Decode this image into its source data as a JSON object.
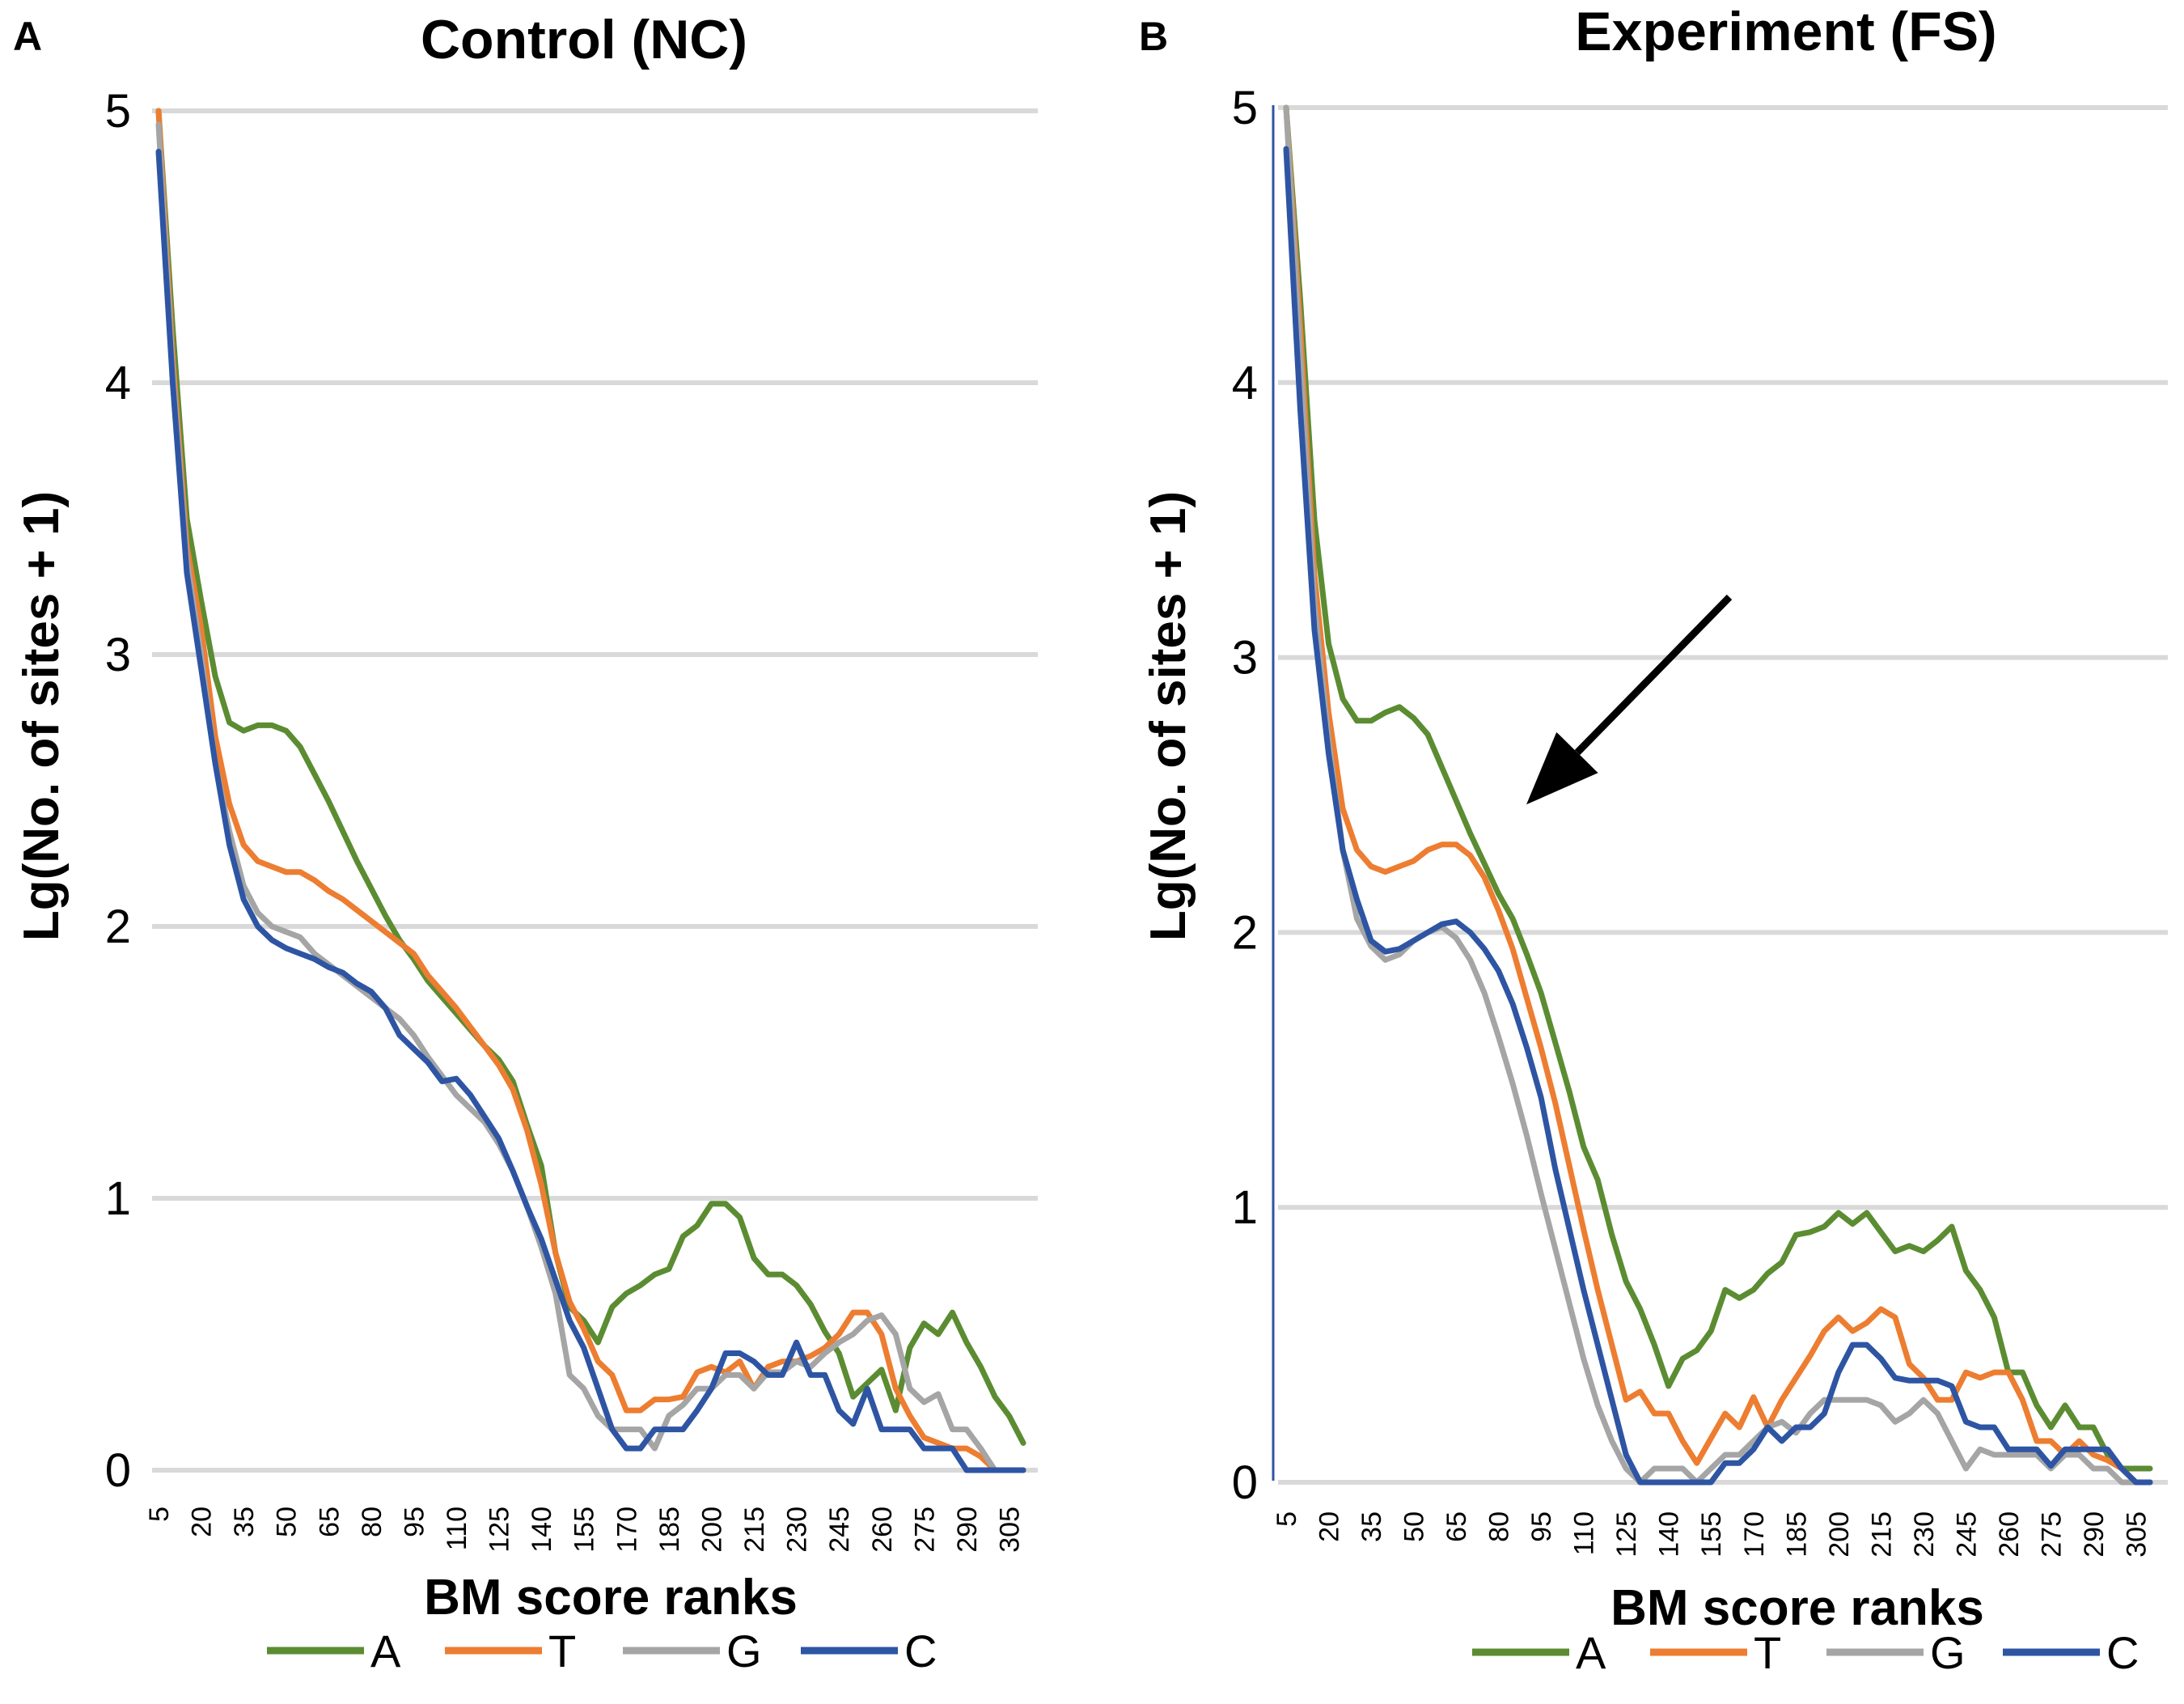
{
  "chart_data": [
    {
      "panel": "A",
      "type": "line",
      "title": "Control (NC)",
      "xlabel": "BM score ranks",
      "ylabel": "Lg(No. of sites + 1)",
      "ylim": [
        0,
        5
      ],
      "yticks": [
        0,
        1,
        2,
        3,
        4,
        5
      ],
      "xlim": [
        5,
        310
      ],
      "xticks": [
        5,
        20,
        35,
        50,
        65,
        80,
        95,
        110,
        125,
        140,
        155,
        170,
        185,
        200,
        215,
        230,
        245,
        260,
        275,
        290,
        305
      ],
      "grid": true,
      "legend_position": "bottom",
      "series": [
        {
          "name": "A",
          "color": "#5b8c32",
          "x": [
            5,
            10,
            15,
            20,
            25,
            30,
            35,
            40,
            45,
            50,
            55,
            60,
            65,
            70,
            75,
            80,
            85,
            90,
            95,
            100,
            105,
            110,
            115,
            120,
            125,
            130,
            135,
            140,
            145,
            150,
            155,
            160,
            165,
            170,
            175,
            180,
            185,
            190,
            195,
            200,
            205,
            210,
            215,
            220,
            225,
            230,
            235,
            240,
            245,
            250,
            255,
            260,
            265,
            270,
            275,
            280,
            285,
            290,
            295,
            300,
            305,
            310
          ],
          "y": [
            5.0,
            4.2,
            3.5,
            3.2,
            2.92,
            2.75,
            2.72,
            2.74,
            2.74,
            2.72,
            2.66,
            2.56,
            2.46,
            2.35,
            2.24,
            2.14,
            2.04,
            1.95,
            1.88,
            1.8,
            1.74,
            1.68,
            1.62,
            1.56,
            1.51,
            1.43,
            1.27,
            1.12,
            0.8,
            0.6,
            0.55,
            0.47,
            0.6,
            0.65,
            0.68,
            0.72,
            0.74,
            0.86,
            0.9,
            0.98,
            0.98,
            0.93,
            0.78,
            0.72,
            0.72,
            0.68,
            0.61,
            0.51,
            0.43,
            0.27,
            0.32,
            0.37,
            0.22,
            0.45,
            0.54,
            0.5,
            0.58,
            0.47,
            0.38,
            0.27,
            0.2,
            0.1
          ]
        },
        {
          "name": "T",
          "color": "#ed7d31",
          "x": [
            5,
            10,
            15,
            20,
            25,
            30,
            35,
            40,
            45,
            50,
            55,
            60,
            65,
            70,
            75,
            80,
            85,
            90,
            95,
            100,
            105,
            110,
            115,
            120,
            125,
            130,
            135,
            140,
            145,
            150,
            155,
            160,
            165,
            170,
            175,
            180,
            185,
            190,
            195,
            200,
            205,
            210,
            215,
            220,
            225,
            230,
            235,
            240,
            245,
            250,
            255,
            260,
            265,
            270,
            275,
            280,
            285,
            290,
            295,
            300,
            305,
            310
          ],
          "y": [
            5.0,
            4.1,
            3.4,
            3.1,
            2.7,
            2.45,
            2.3,
            2.24,
            2.22,
            2.2,
            2.2,
            2.17,
            2.13,
            2.1,
            2.06,
            2.02,
            1.98,
            1.94,
            1.9,
            1.82,
            1.76,
            1.7,
            1.63,
            1.56,
            1.49,
            1.4,
            1.25,
            1.05,
            0.8,
            0.62,
            0.52,
            0.4,
            0.35,
            0.22,
            0.22,
            0.26,
            0.26,
            0.27,
            0.36,
            0.38,
            0.36,
            0.4,
            0.3,
            0.38,
            0.4,
            0.4,
            0.42,
            0.45,
            0.5,
            0.58,
            0.58,
            0.5,
            0.3,
            0.2,
            0.12,
            0.1,
            0.08,
            0.08,
            0.05,
            0.0,
            0.0,
            0.0
          ]
        },
        {
          "name": "G",
          "color": "#a5a5a5",
          "x": [
            5,
            10,
            15,
            20,
            25,
            30,
            35,
            40,
            45,
            50,
            55,
            60,
            65,
            70,
            75,
            80,
            85,
            90,
            95,
            100,
            105,
            110,
            115,
            120,
            125,
            130,
            135,
            140,
            145,
            150,
            155,
            160,
            165,
            170,
            175,
            180,
            185,
            190,
            195,
            200,
            205,
            210,
            215,
            220,
            225,
            230,
            235,
            240,
            245,
            250,
            255,
            260,
            265,
            270,
            275,
            280,
            285,
            290,
            295,
            300,
            305,
            310
          ],
          "y": [
            4.95,
            4.05,
            3.35,
            3.0,
            2.6,
            2.35,
            2.15,
            2.05,
            2.0,
            1.98,
            1.96,
            1.9,
            1.86,
            1.82,
            1.78,
            1.74,
            1.7,
            1.66,
            1.6,
            1.52,
            1.45,
            1.38,
            1.33,
            1.28,
            1.2,
            1.1,
            0.97,
            0.82,
            0.65,
            0.35,
            0.3,
            0.2,
            0.15,
            0.15,
            0.15,
            0.08,
            0.2,
            0.24,
            0.3,
            0.3,
            0.35,
            0.35,
            0.3,
            0.36,
            0.36,
            0.4,
            0.38,
            0.43,
            0.47,
            0.5,
            0.55,
            0.57,
            0.5,
            0.3,
            0.25,
            0.28,
            0.15,
            0.15,
            0.08,
            0.0,
            0.0,
            0.0
          ]
        },
        {
          "name": "C",
          "color": "#2e55a3",
          "x": [
            5,
            10,
            15,
            20,
            25,
            30,
            35,
            40,
            45,
            50,
            55,
            60,
            65,
            70,
            75,
            80,
            85,
            90,
            95,
            100,
            105,
            110,
            115,
            120,
            125,
            130,
            135,
            140,
            145,
            150,
            155,
            160,
            165,
            170,
            175,
            180,
            185,
            190,
            195,
            200,
            205,
            210,
            215,
            220,
            225,
            230,
            235,
            240,
            245,
            250,
            255,
            260,
            265,
            270,
            275,
            280,
            285,
            290,
            295,
            300,
            305,
            310
          ],
          "y": [
            4.85,
            4.0,
            3.3,
            2.95,
            2.6,
            2.3,
            2.1,
            2.0,
            1.95,
            1.92,
            1.9,
            1.88,
            1.85,
            1.83,
            1.79,
            1.76,
            1.7,
            1.6,
            1.55,
            1.5,
            1.43,
            1.44,
            1.38,
            1.3,
            1.22,
            1.1,
            0.97,
            0.85,
            0.7,
            0.55,
            0.45,
            0.3,
            0.15,
            0.08,
            0.08,
            0.15,
            0.15,
            0.15,
            0.22,
            0.3,
            0.43,
            0.43,
            0.4,
            0.35,
            0.35,
            0.47,
            0.35,
            0.35,
            0.22,
            0.17,
            0.3,
            0.15,
            0.15,
            0.15,
            0.08,
            0.08,
            0.08,
            0.0,
            0.0,
            0.0,
            0.0,
            0.0
          ]
        }
      ]
    },
    {
      "panel": "B",
      "type": "line",
      "title": "Experiment (FS)",
      "xlabel": "BM score ranks",
      "ylabel": "Lg(No. of sites + 1)",
      "ylim": [
        0,
        5
      ],
      "yticks": [
        0,
        1,
        2,
        3,
        4,
        5
      ],
      "xlim": [
        5,
        310
      ],
      "xticks": [
        5,
        20,
        35,
        50,
        65,
        80,
        95,
        110,
        125,
        140,
        155,
        170,
        185,
        200,
        215,
        230,
        245,
        260,
        275,
        290,
        305
      ],
      "grid": true,
      "legend_position": "bottom",
      "annotation": "arrow pointing to the shoulder near rank 80",
      "series": [
        {
          "name": "A",
          "color": "#5b8c32",
          "x": [
            5,
            10,
            15,
            20,
            25,
            30,
            35,
            40,
            45,
            50,
            55,
            60,
            65,
            70,
            75,
            80,
            85,
            90,
            95,
            100,
            105,
            110,
            115,
            120,
            125,
            130,
            135,
            140,
            145,
            150,
            155,
            160,
            165,
            170,
            175,
            180,
            185,
            190,
            195,
            200,
            205,
            210,
            215,
            220,
            225,
            230,
            235,
            240,
            245,
            250,
            255,
            260,
            265,
            270,
            275,
            280,
            285,
            290,
            295,
            300,
            305,
            310
          ],
          "y": [
            5.0,
            4.3,
            3.5,
            3.05,
            2.85,
            2.77,
            2.77,
            2.8,
            2.82,
            2.78,
            2.72,
            2.6,
            2.48,
            2.36,
            2.25,
            2.14,
            2.05,
            1.92,
            1.78,
            1.6,
            1.42,
            1.22,
            1.1,
            0.9,
            0.73,
            0.63,
            0.5,
            0.35,
            0.45,
            0.48,
            0.55,
            0.7,
            0.67,
            0.7,
            0.76,
            0.8,
            0.9,
            0.91,
            0.93,
            0.98,
            0.94,
            0.98,
            0.91,
            0.84,
            0.86,
            0.84,
            0.88,
            0.93,
            0.77,
            0.7,
            0.6,
            0.4,
            0.4,
            0.28,
            0.2,
            0.28,
            0.2,
            0.2,
            0.1,
            0.05,
            0.05,
            0.05
          ]
        },
        {
          "name": "T",
          "color": "#ed7d31",
          "x": [
            5,
            10,
            15,
            20,
            25,
            30,
            35,
            40,
            45,
            50,
            55,
            60,
            65,
            70,
            75,
            80,
            85,
            90,
            95,
            100,
            105,
            110,
            115,
            120,
            125,
            130,
            135,
            140,
            145,
            150,
            155,
            160,
            165,
            170,
            175,
            180,
            185,
            190,
            195,
            200,
            205,
            210,
            215,
            220,
            225,
            230,
            235,
            240,
            245,
            250,
            255,
            260,
            265,
            270,
            275,
            280,
            285,
            290,
            295,
            300,
            305,
            310
          ],
          "y": [
            5.0,
            4.2,
            3.3,
            2.8,
            2.45,
            2.3,
            2.24,
            2.22,
            2.24,
            2.26,
            2.3,
            2.32,
            2.32,
            2.28,
            2.2,
            2.08,
            1.94,
            1.76,
            1.58,
            1.38,
            1.15,
            0.92,
            0.7,
            0.5,
            0.3,
            0.33,
            0.25,
            0.25,
            0.15,
            0.07,
            0.16,
            0.25,
            0.2,
            0.31,
            0.2,
            0.3,
            0.38,
            0.46,
            0.55,
            0.6,
            0.55,
            0.58,
            0.63,
            0.6,
            0.43,
            0.38,
            0.3,
            0.3,
            0.4,
            0.38,
            0.4,
            0.4,
            0.3,
            0.15,
            0.15,
            0.1,
            0.15,
            0.1,
            0.08,
            0.05,
            0.0,
            0.0
          ]
        },
        {
          "name": "G",
          "color": "#a5a5a5",
          "x": [
            5,
            10,
            15,
            20,
            25,
            30,
            35,
            40,
            45,
            50,
            55,
            60,
            65,
            70,
            75,
            80,
            85,
            90,
            95,
            100,
            105,
            110,
            115,
            120,
            125,
            130,
            135,
            140,
            145,
            150,
            155,
            160,
            165,
            170,
            175,
            180,
            185,
            190,
            195,
            200,
            205,
            210,
            215,
            220,
            225,
            230,
            235,
            240,
            245,
            250,
            255,
            260,
            265,
            270,
            275,
            280,
            285,
            290,
            295,
            300,
            305,
            310
          ],
          "y": [
            5.0,
            4.1,
            3.2,
            2.7,
            2.3,
            2.05,
            1.95,
            1.9,
            1.92,
            1.97,
            2.0,
            2.02,
            1.98,
            1.9,
            1.78,
            1.62,
            1.45,
            1.26,
            1.05,
            0.85,
            0.65,
            0.45,
            0.28,
            0.15,
            0.05,
            0.0,
            0.05,
            0.05,
            0.05,
            0.0,
            0.05,
            0.1,
            0.1,
            0.15,
            0.2,
            0.22,
            0.18,
            0.25,
            0.3,
            0.3,
            0.3,
            0.3,
            0.28,
            0.22,
            0.25,
            0.3,
            0.25,
            0.15,
            0.05,
            0.12,
            0.1,
            0.1,
            0.1,
            0.1,
            0.05,
            0.1,
            0.1,
            0.05,
            0.05,
            0.0,
            0.0,
            0.0
          ]
        },
        {
          "name": "C",
          "color": "#2e55a3",
          "x": [
            5,
            10,
            15,
            20,
            25,
            30,
            35,
            40,
            45,
            50,
            55,
            60,
            65,
            70,
            75,
            80,
            85,
            90,
            95,
            100,
            105,
            110,
            115,
            120,
            125,
            130,
            135,
            140,
            145,
            150,
            155,
            160,
            165,
            170,
            175,
            180,
            185,
            190,
            195,
            200,
            205,
            210,
            215,
            220,
            225,
            230,
            235,
            240,
            245,
            250,
            255,
            260,
            265,
            270,
            275,
            280,
            285,
            290,
            295,
            300,
            305,
            310
          ],
          "y": [
            4.85,
            3.9,
            3.1,
            2.65,
            2.3,
            2.12,
            1.97,
            1.93,
            1.94,
            1.97,
            2.0,
            2.03,
            2.04,
            2.0,
            1.94,
            1.86,
            1.74,
            1.58,
            1.4,
            1.14,
            0.92,
            0.7,
            0.5,
            0.3,
            0.1,
            0.0,
            0.0,
            0.0,
            0.0,
            0.0,
            0.0,
            0.07,
            0.07,
            0.12,
            0.2,
            0.15,
            0.2,
            0.2,
            0.25,
            0.4,
            0.5,
            0.5,
            0.45,
            0.38,
            0.37,
            0.37,
            0.37,
            0.35,
            0.22,
            0.2,
            0.2,
            0.12,
            0.12,
            0.12,
            0.06,
            0.12,
            0.12,
            0.12,
            0.12,
            0.05,
            0.0,
            0.0
          ]
        }
      ]
    }
  ]
}
